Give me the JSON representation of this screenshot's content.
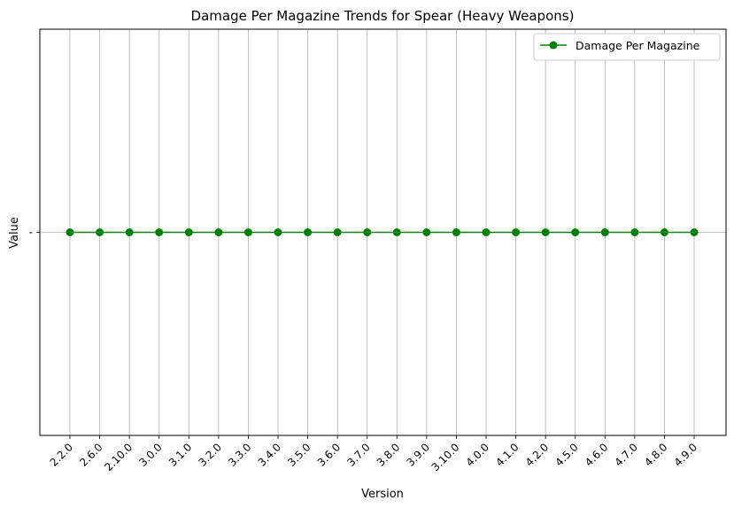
{
  "chart_data": {
    "type": "line",
    "title": "Damage Per Magazine Trends for Spear (Heavy Weapons)",
    "xlabel": "Version",
    "ylabel": "Value",
    "categories": [
      "2.2.0",
      "2.6.0",
      "2.10.0",
      "3.0.0",
      "3.1.0",
      "3.2.0",
      "3.3.0",
      "3.4.0",
      "3.5.0",
      "3.6.0",
      "3.7.0",
      "3.8.0",
      "3.9.0",
      "3.10.0",
      "4.0.0",
      "4.1.0",
      "4.2.0",
      "4.5.0",
      "4.6.0",
      "4.7.0",
      "4.8.0",
      "4.9.0"
    ],
    "y_ticks": [
      "-"
    ],
    "series": [
      {
        "name": "Damage Per Magazine",
        "values": [
          "-",
          "-",
          "-",
          "-",
          "-",
          "-",
          "-",
          "-",
          "-",
          "-",
          "-",
          "-",
          "-",
          "-",
          "-",
          "-",
          "-",
          "-",
          "-",
          "-",
          "-",
          "-"
        ],
        "color": "#008000",
        "marker": "circle"
      }
    ],
    "grid": true,
    "legend": "top-right"
  }
}
